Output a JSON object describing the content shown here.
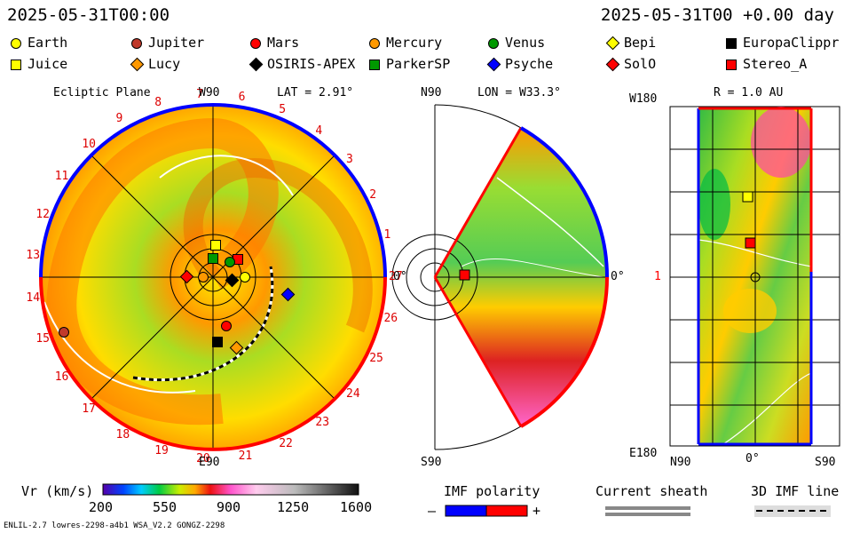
{
  "header": {
    "datetime": "2025-05-31T00:00",
    "relative": "2025-05-31T00 +0.00 day"
  },
  "legend": [
    {
      "name": "Earth",
      "color": "#ffff00",
      "shape": "circle"
    },
    {
      "name": "Jupiter",
      "color": "#c0392b",
      "shape": "circle"
    },
    {
      "name": "Mars",
      "color": "#ff0000",
      "shape": "circle"
    },
    {
      "name": "Mercury",
      "color": "#ff9900",
      "shape": "circle"
    },
    {
      "name": "Venus",
      "color": "#009900",
      "shape": "circle"
    },
    {
      "name": "Bepi",
      "color": "#ffff00",
      "shape": "diamond"
    },
    {
      "name": "EuropaClippr",
      "color": "#000000",
      "shape": "square"
    },
    {
      "name": "Juice",
      "color": "#ffff00",
      "shape": "square"
    },
    {
      "name": "Lucy",
      "color": "#ff9900",
      "shape": "diamond"
    },
    {
      "name": "OSIRIS-APEX",
      "color": "#000000",
      "shape": "diamond"
    },
    {
      "name": "ParkerSP",
      "color": "#009900",
      "shape": "square"
    },
    {
      "name": "Psyche",
      "color": "#0000ff",
      "shape": "diamond"
    },
    {
      "name": "SolO",
      "color": "#ff0000",
      "shape": "diamond"
    },
    {
      "name": "Stereo_A",
      "color": "#ff0000",
      "shape": "square"
    }
  ],
  "panels": {
    "ecliptic": {
      "title": "Ecliptic Plane",
      "top": "W90",
      "lat": "LAT = 2.91°",
      "bottom": "E90",
      "right": "0°"
    },
    "meridional": {
      "top": "N90",
      "lon": "LON = W33.3°",
      "bottom": "S90",
      "right": "0°"
    },
    "radial": {
      "top_left": "W180",
      "r": "R = 1.0 AU",
      "middle_left": "1",
      "bottom_left": "E180",
      "x_left": "N90",
      "x_mid": "0°",
      "x_right": "S90"
    }
  },
  "colorbar": {
    "label": "Vr (km/s)",
    "ticks": [
      "200",
      "550",
      "900",
      "1250",
      "1600"
    ]
  },
  "imf": {
    "label": "IMF polarity",
    "minus": "–",
    "plus": "+"
  },
  "sheath": {
    "label": "Current sheath"
  },
  "imf3d": {
    "label": "3D IMF line"
  },
  "footer": {
    "model": "ENLIL-2.7 lowres-2298-a4b1 WSA_V2.2 GONGZ-2298"
  },
  "chart_data": {
    "type": "heatmap",
    "quantity": "Vr (km/s)",
    "range": [
      200,
      1600
    ],
    "carrington_ticks": [
      "1",
      "2",
      "3",
      "4",
      "5",
      "6",
      "7",
      "8",
      "9",
      "10",
      "11",
      "12",
      "13",
      "14",
      "15",
      "16",
      "17",
      "18",
      "19",
      "20",
      "21",
      "22",
      "23",
      "24",
      "25",
      "26",
      "27"
    ],
    "radial_distance_au": 1.0,
    "latitude_deg": 2.91,
    "longitude_deg": "W33.3"
  }
}
